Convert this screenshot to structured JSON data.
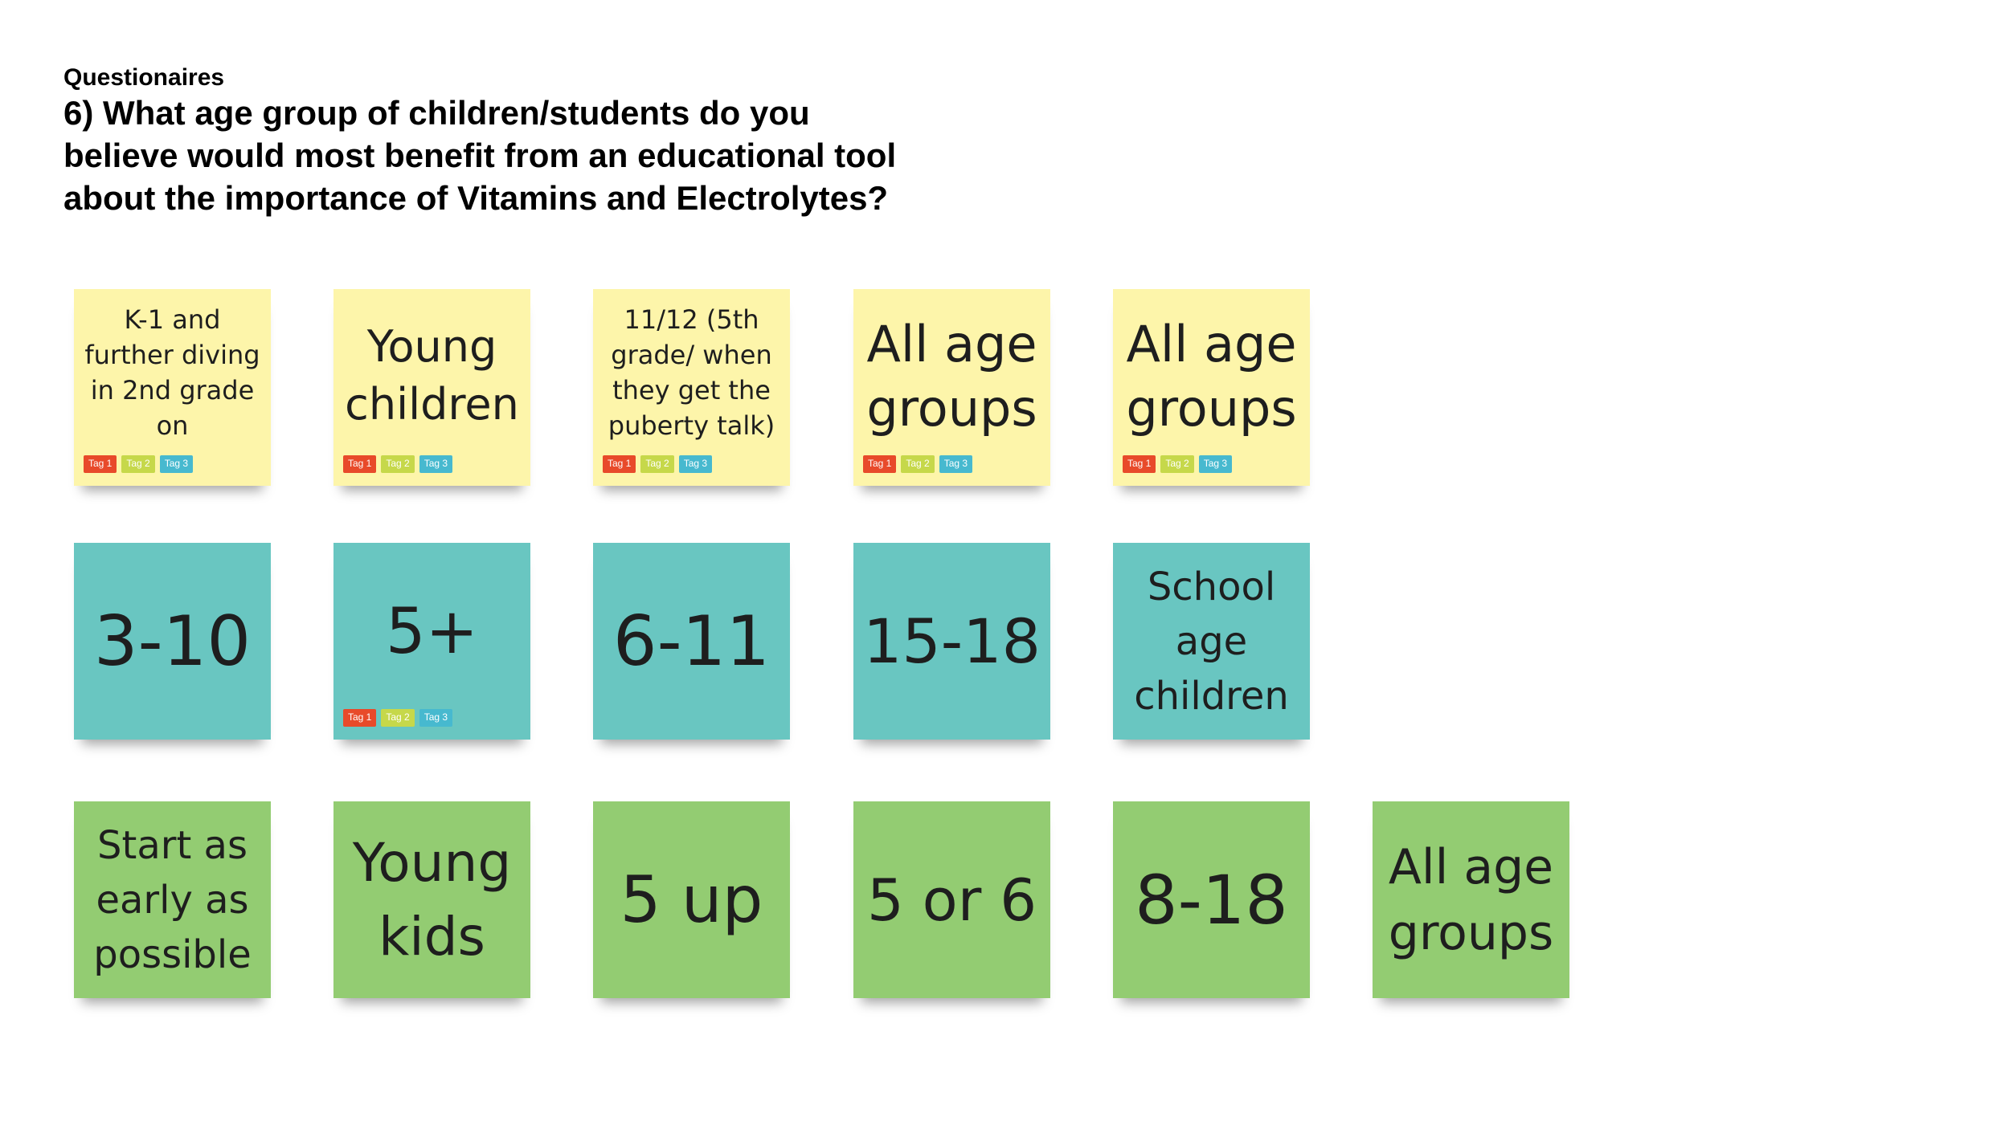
{
  "header": {
    "subtitle": "Questionaires",
    "question": "6) What age group of children/students do you\nbelieve would most benefit from an educational tool\nabout the importance of Vitamins and Electrolytes?"
  },
  "tags": [
    "Tag 1",
    "Tag 2",
    "Tag 3"
  ],
  "colors": {
    "yellow": "#fdf5aa",
    "teal": "#69c6c1",
    "green": "#93cc72",
    "tag1": "#e84a2a",
    "tag2": "#c6d84a",
    "tag3": "#47b9cf"
  },
  "rows": {
    "yellow": [
      {
        "text": "K-1 and\nfurther diving\nin 2nd grade\non"
      },
      {
        "text": "Young\nchildren"
      },
      {
        "text": "11/12 (5th\ngrade/ when\nthey get the\npuberty talk)"
      },
      {
        "text": "All age\ngroups"
      },
      {
        "text": "All age\ngroups"
      }
    ],
    "teal": [
      {
        "text": "3-10"
      },
      {
        "text": "5+"
      },
      {
        "text": "6-11"
      },
      {
        "text": "15-18"
      },
      {
        "text": "School\nage\nchildren"
      }
    ],
    "green": [
      {
        "text": "Start as\nearly as\npossible"
      },
      {
        "text": "Young\nkids"
      },
      {
        "text": "5 up"
      },
      {
        "text": "5 or 6"
      },
      {
        "text": "8-18"
      },
      {
        "text": "All age\ngroups"
      }
    ]
  }
}
